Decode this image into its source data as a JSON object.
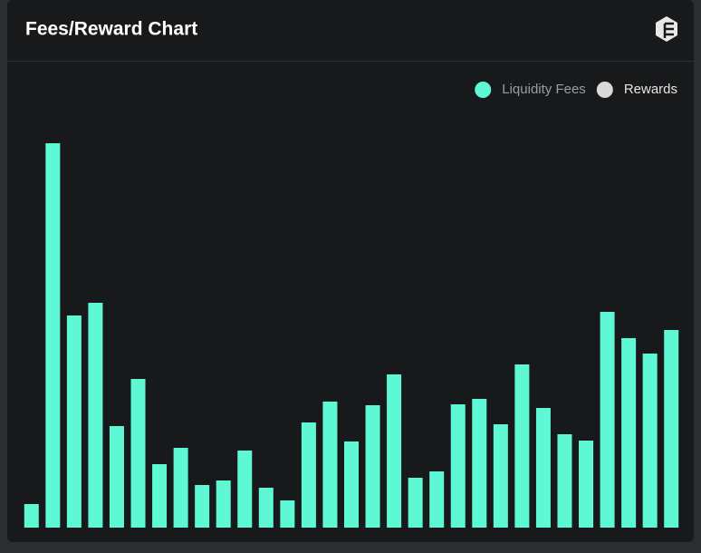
{
  "header": {
    "title": "Fees/Reward Chart"
  },
  "chart_data": {
    "type": "bar",
    "series": [
      {
        "name": "Liquidity Fees",
        "color": "#5ef8d4",
        "values": [
          26,
          424,
          234,
          248,
          112,
          164,
          70,
          88,
          47,
          52,
          85,
          44,
          30,
          116,
          139,
          95,
          135,
          169,
          55,
          62,
          136,
          142,
          114,
          180,
          132,
          103,
          96,
          238,
          209,
          192,
          218
        ]
      },
      {
        "name": "Rewards",
        "color": "#d9d9d9",
        "values": [
          null,
          null,
          null,
          null,
          null,
          null,
          null,
          null,
          null,
          null,
          null,
          null,
          null,
          null,
          null,
          null,
          null,
          null,
          null,
          null,
          null,
          null,
          null,
          null,
          null,
          null,
          null,
          null,
          null,
          null,
          null
        ]
      }
    ],
    "ylim": [
      0,
      424
    ],
    "legend": "top-right"
  }
}
